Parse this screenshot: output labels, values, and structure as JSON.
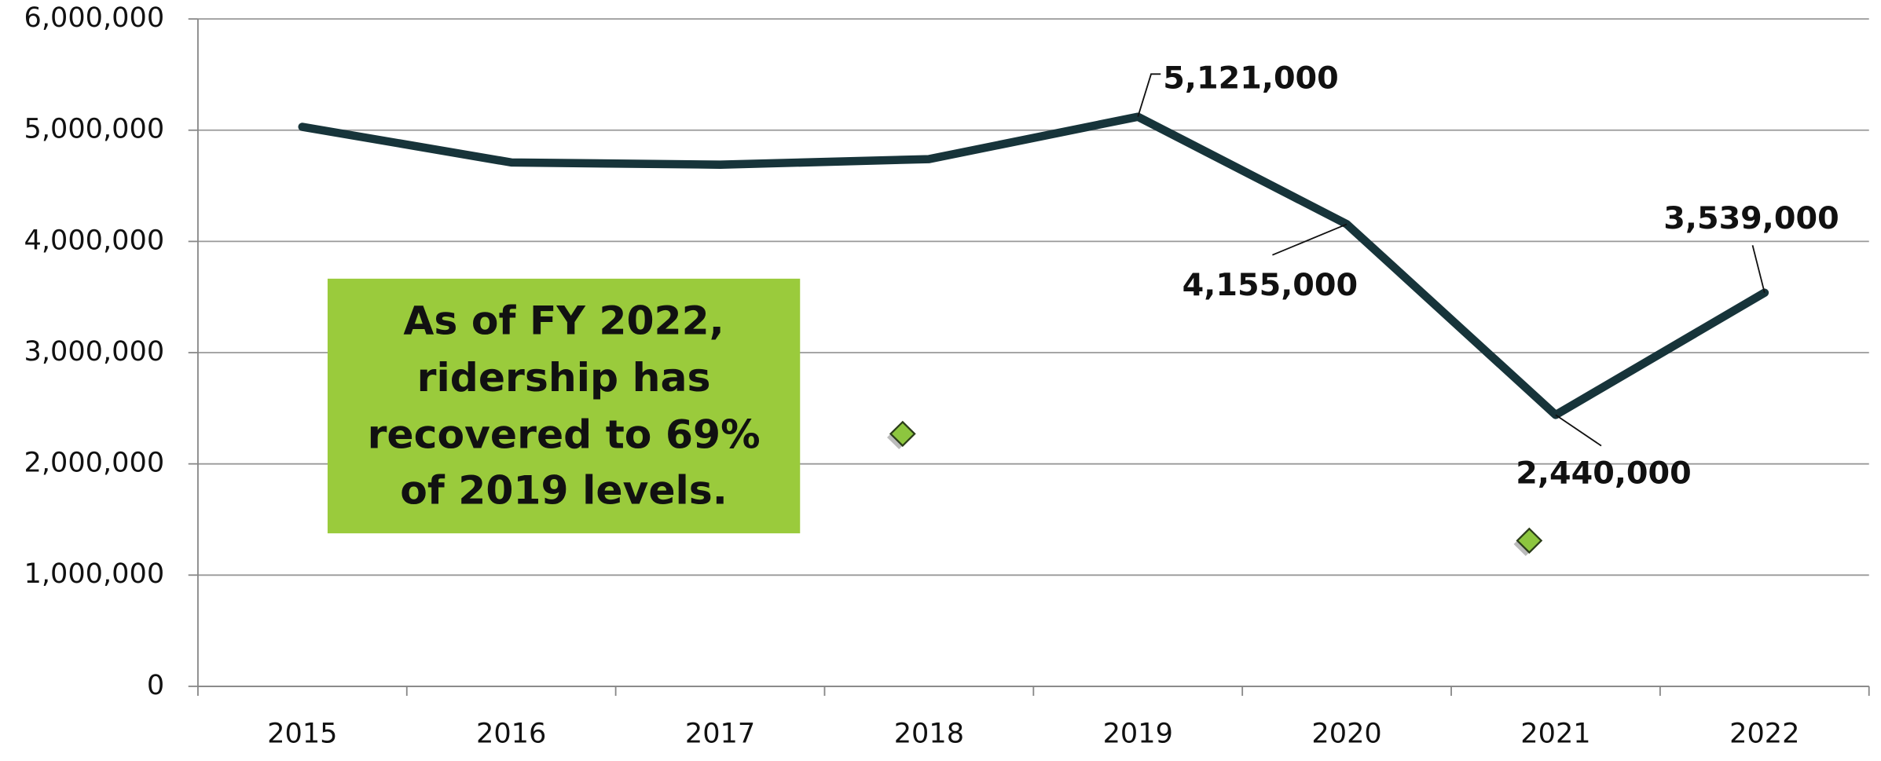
{
  "chart_data": {
    "type": "line",
    "categories": [
      "2015",
      "2016",
      "2017",
      "2018",
      "2019",
      "2020",
      "2021",
      "2022"
    ],
    "series": [
      {
        "color": "#17343a",
        "values": [
          5030000,
          4710000,
          4690000,
          4740000,
          5121000,
          4155000,
          2440000,
          3539000
        ],
        "value_labels": [
          null,
          null,
          null,
          null,
          "5,121,000",
          "4,155,000",
          "2,440,000",
          "3,539,000"
        ]
      },
      {
        "color": "#8dc63f",
        "values": [
          null,
          null,
          null,
          2270000,
          null,
          null,
          1310000,
          null
        ]
      }
    ],
    "ylim": [
      0,
      6000000
    ],
    "yticks": [
      {
        "value": 0,
        "label": "0"
      },
      {
        "value": 1000000,
        "label": "1,000,000"
      },
      {
        "value": 2000000,
        "label": "2,000,000"
      },
      {
        "value": 3000000,
        "label": "3,000,000"
      },
      {
        "value": 4000000,
        "label": "4,000,000"
      },
      {
        "value": 5000000,
        "label": "5,000,000"
      },
      {
        "value": 6000000,
        "label": "6,000,000"
      }
    ],
    "grid": true,
    "annotation": "As of FY 2022, ridership has recovered to 69% of 2019 levels."
  }
}
